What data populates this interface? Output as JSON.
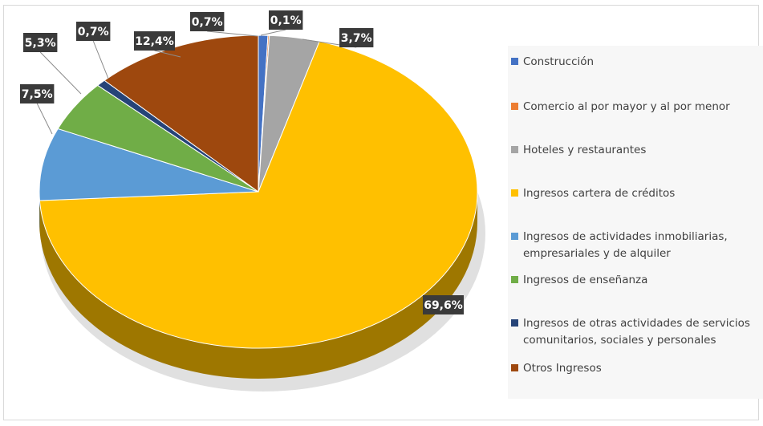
{
  "chart_data": {
    "type": "pie",
    "title": "",
    "legend_position": "right",
    "slices": [
      {
        "label": "Construcción",
        "value": 0.7,
        "display": "0,7%",
        "color": "#4472c4"
      },
      {
        "label": "Comercio al por mayor y al por menor",
        "value": 0.1,
        "display": "0,1%",
        "color": "#ed7d31"
      },
      {
        "label": "Hoteles y restaurantes",
        "value": 3.7,
        "display": "3,7%",
        "color": "#a5a5a5"
      },
      {
        "label": "Ingresos cartera de créditos",
        "value": 69.6,
        "display": "69,6%",
        "color": "#ffc000"
      },
      {
        "label": "Ingresos de actividades inmobiliarias, empresariales y de alquiler",
        "value": 7.5,
        "display": "7,5%",
        "color": "#5b9bd5"
      },
      {
        "label": "Ingresos de enseñanza",
        "value": 5.3,
        "display": "5,3%",
        "color": "#70ad47"
      },
      {
        "label": "Ingresos de otras actividades de servicios comunitarios, sociales y personales",
        "value": 0.7,
        "display": "0,7%",
        "color": "#264478"
      },
      {
        "label": "Otros Ingresos",
        "value": 12.4,
        "display": "12,4%",
        "color": "#9e480e"
      }
    ]
  }
}
